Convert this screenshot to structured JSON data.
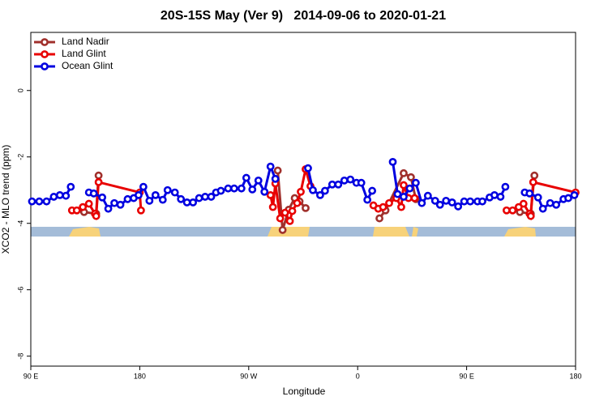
{
  "chart_data": {
    "type": "line",
    "title": "20S-15S May (Ver 9)   2014-09-06 to 2020-01-21",
    "xlabel": "Longitude",
    "ylabel": "XCO2 - MLO trend (ppm)",
    "xlim": [
      90,
      540
    ],
    "xticks": [
      {
        "value": 90,
        "label": "90 E"
      },
      180,
      {
        "value": 270,
        "label": "90 W"
      },
      {
        "value": 360,
        "label": "0"
      },
      {
        "value": 450,
        "label": "90 E"
      },
      {
        "value": 540,
        "label": "180"
      }
    ],
    "ylim": [
      -8.3,
      1.75
    ],
    "yticks": [
      -8,
      -6,
      -4,
      -2,
      0
    ],
    "legend": "top-left",
    "series": [
      {
        "name": "Land Nadir",
        "color": "#a0302c",
        "x": [
          134,
          144,
          146,
          null,
          294,
          298,
          303,
          308,
          312,
          317,
          null,
          378,
          383,
          398,
          404,
          408,
          null,
          494,
          503,
          506
        ],
        "values": [
          -3.66,
          -3.71,
          -2.56,
          null,
          -2.41,
          -4.2,
          -3.59,
          -3.24,
          -3.34,
          -3.54,
          null,
          -3.85,
          -3.61,
          -2.49,
          -2.61,
          -3.27,
          null,
          -3.66,
          -3.71,
          -2.56
        ]
      },
      {
        "name": "Land Glint",
        "color": "#e80000",
        "x": [
          124,
          128,
          133,
          138,
          143,
          144,
          146,
          180,
          181,
          null,
          288,
          290,
          292,
          296,
          300,
          304,
          306,
          310,
          313,
          317,
          321,
          null,
          373,
          377,
          381,
          386,
          392,
          396,
          398,
          402,
          407,
          null,
          483,
          488,
          493,
          497,
          502,
          503,
          505,
          540
        ],
        "values": [
          -3.61,
          -3.61,
          -3.51,
          -3.41,
          -3.71,
          -3.78,
          -2.76,
          -3.07,
          -3.61,
          null,
          -3.15,
          -3.51,
          -2.8,
          -3.85,
          -3.68,
          -3.93,
          -3.63,
          -3.39,
          -3.05,
          -2.37,
          -2.88,
          null,
          -3.46,
          -3.56,
          -3.51,
          -3.39,
          -3.24,
          -3.51,
          -2.85,
          -3.24,
          -3.24,
          null,
          -3.61,
          -3.61,
          -3.51,
          -3.41,
          -3.71,
          -3.78,
          -2.76,
          -3.07
        ]
      },
      {
        "name": "Ocean Glint",
        "color": "#0000e0",
        "x": [
          91,
          97,
          103,
          109,
          114,
          119,
          123,
          null,
          138,
          142,
          149,
          154,
          159,
          164,
          170,
          175,
          179,
          183,
          188,
          193,
          199,
          203,
          209,
          214,
          219,
          224,
          229,
          234,
          239,
          243,
          247,
          253,
          258,
          264,
          268,
          273,
          278,
          283,
          288,
          292,
          null,
          319,
          323,
          329,
          333,
          339,
          344,
          349,
          354,
          359,
          363,
          368,
          372,
          null,
          389,
          393,
          398,
          403,
          408,
          413,
          418,
          424,
          428,
          433,
          438,
          443,
          448,
          453,
          459,
          463,
          469,
          473,
          478,
          482,
          null,
          498,
          502,
          509,
          513,
          519,
          524,
          530,
          534,
          539
        ],
        "values": [
          -3.34,
          -3.34,
          -3.34,
          -3.2,
          -3.15,
          -3.17,
          -2.9,
          null,
          -3.07,
          -3.1,
          -3.22,
          -3.56,
          -3.39,
          -3.44,
          -3.27,
          -3.24,
          -3.15,
          -2.9,
          -3.32,
          -3.15,
          -3.29,
          -3.0,
          -3.07,
          -3.27,
          -3.37,
          -3.37,
          -3.24,
          -3.2,
          -3.2,
          -3.07,
          -3.02,
          -2.95,
          -2.95,
          -2.95,
          -2.63,
          -2.98,
          -2.71,
          -3.05,
          -2.29,
          -2.66,
          null,
          -2.34,
          -3.0,
          -3.15,
          -3.02,
          -2.83,
          -2.83,
          -2.71,
          -2.68,
          -2.78,
          -2.78,
          -3.29,
          -3.02,
          null,
          -2.15,
          -3.12,
          -3.2,
          -2.95,
          -2.78,
          -3.39,
          -3.17,
          -3.32,
          -3.44,
          -3.32,
          -3.37,
          -3.49,
          -3.34,
          -3.34,
          -3.34,
          -3.34,
          -3.22,
          -3.15,
          -3.2,
          -2.9,
          null,
          -3.07,
          -3.1,
          -3.22,
          -3.56,
          -3.39,
          -3.44,
          -3.27,
          -3.24,
          -3.15
        ]
      }
    ]
  }
}
